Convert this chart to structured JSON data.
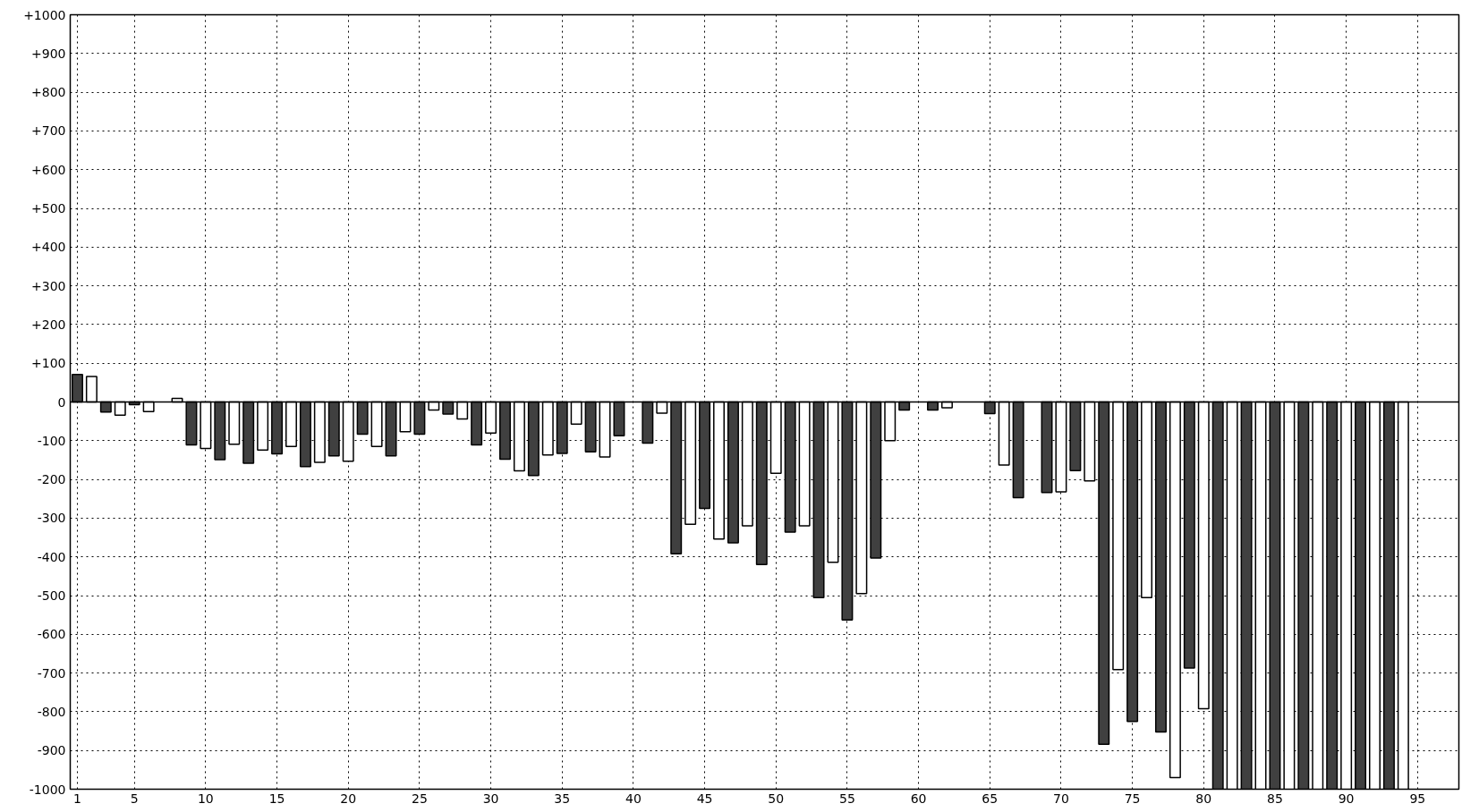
{
  "chart_data": {
    "type": "bar",
    "x": [
      1,
      2,
      3,
      4,
      5,
      6,
      7,
      8,
      9,
      10,
      11,
      12,
      13,
      14,
      15,
      16,
      17,
      18,
      19,
      20,
      21,
      22,
      23,
      24,
      25,
      26,
      27,
      28,
      29,
      30,
      31,
      32,
      33,
      34,
      35,
      36,
      37,
      38,
      39,
      40,
      41,
      42,
      43,
      44,
      45,
      46,
      47,
      48,
      49,
      50,
      51,
      52,
      53,
      54,
      55,
      56,
      57,
      58,
      59,
      60,
      61,
      62,
      63,
      64,
      65,
      66,
      67,
      68,
      69,
      70,
      71,
      72,
      73,
      74,
      75,
      76,
      77,
      78,
      79,
      80,
      81,
      82,
      83,
      84,
      85,
      86,
      87,
      88,
      89,
      90,
      91,
      92,
      93,
      94
    ],
    "values": [
      71,
      66,
      -26,
      -34,
      -7,
      -25,
      null,
      9,
      -111,
      -120,
      -149,
      -109,
      -158,
      -124,
      -134,
      -115,
      -167,
      -156,
      -139,
      -153,
      -83,
      -115,
      -139,
      -77,
      -83,
      -21,
      -31,
      -44,
      -111,
      -80,
      -148,
      -178,
      -190,
      -137,
      -133,
      -57,
      -129,
      -142,
      -87,
      null,
      -106,
      -29,
      -392,
      -316,
      -275,
      -354,
      -364,
      -320,
      -420,
      -184,
      -336,
      -320,
      -505,
      -414,
      -563,
      -495,
      -403,
      -100,
      -21,
      null,
      -21,
      -15,
      null,
      null,
      -30,
      -163,
      -247,
      null,
      -234,
      -232,
      -177,
      -204,
      -884,
      -691,
      -825,
      -505,
      -852,
      -970,
      -687,
      -792,
      -1000,
      -1000,
      -1000,
      -1000,
      -1000,
      -1000,
      -1000,
      -1000,
      -1000,
      -1000,
      -1000,
      -1000,
      -1000,
      -1000
    ],
    "colors": [
      "#404040",
      "#ffffff",
      "#404040",
      "#ffffff",
      "#404040",
      "#ffffff",
      "#404040",
      "#ffffff",
      "#404040",
      "#ffffff",
      "#404040",
      "#ffffff",
      "#404040",
      "#ffffff",
      "#404040",
      "#ffffff",
      "#404040",
      "#ffffff",
      "#404040",
      "#ffffff",
      "#404040",
      "#ffffff",
      "#404040",
      "#ffffff",
      "#404040",
      "#ffffff",
      "#404040",
      "#ffffff",
      "#404040",
      "#ffffff",
      "#404040",
      "#ffffff",
      "#404040",
      "#ffffff",
      "#404040",
      "#ffffff",
      "#404040",
      "#ffffff",
      "#404040",
      "#ffffff",
      "#404040",
      "#ffffff",
      "#404040",
      "#ffffff",
      "#404040",
      "#ffffff",
      "#404040",
      "#ffffff",
      "#404040",
      "#ffffff",
      "#404040",
      "#ffffff",
      "#404040",
      "#ffffff",
      "#404040",
      "#ffffff",
      "#404040",
      "#ffffff",
      "#404040",
      "#ffffff",
      "#404040",
      "#ffffff",
      "#404040",
      "#ffffff",
      "#404040",
      "#ffffff",
      "#404040",
      "#ffffff",
      "#404040",
      "#ffffff",
      "#404040",
      "#ffffff",
      "#404040",
      "#ffffff",
      "#404040",
      "#ffffff",
      "#404040",
      "#ffffff",
      "#404040",
      "#ffffff",
      "#404040",
      "#ffffff",
      "#404040",
      "#ffffff",
      "#404040",
      "#ffffff",
      "#404040",
      "#ffffff",
      "#404040",
      "#ffffff",
      "#404040",
      "#ffffff",
      "#404040",
      "#ffffff"
    ],
    "xlim": [
      0.5,
      97.9
    ],
    "xticks": [
      1,
      5,
      10,
      15,
      20,
      25,
      30,
      35,
      40,
      45,
      50,
      55,
      60,
      65,
      70,
      75,
      80,
      85,
      90,
      95
    ],
    "ylim": [
      -1000,
      1000
    ],
    "yticks": [
      {
        "value": 1000,
        "label": "+1000"
      },
      {
        "value": 900,
        "label": "+900"
      },
      {
        "value": 800,
        "label": "+800"
      },
      {
        "value": 700,
        "label": "+700"
      },
      {
        "value": 600,
        "label": "+600"
      },
      {
        "value": 500,
        "label": "+500"
      },
      {
        "value": 400,
        "label": "+400"
      },
      {
        "value": 300,
        "label": "+300"
      },
      {
        "value": 200,
        "label": "+200"
      },
      {
        "value": 100,
        "label": "+100"
      },
      0,
      -100,
      -200,
      -300,
      -400,
      -500,
      -600,
      -700,
      -800,
      -900,
      -1000
    ],
    "ref_lines": [
      {
        "axis": "y",
        "value": 0,
        "color": "#000000"
      }
    ],
    "grid": true
  }
}
